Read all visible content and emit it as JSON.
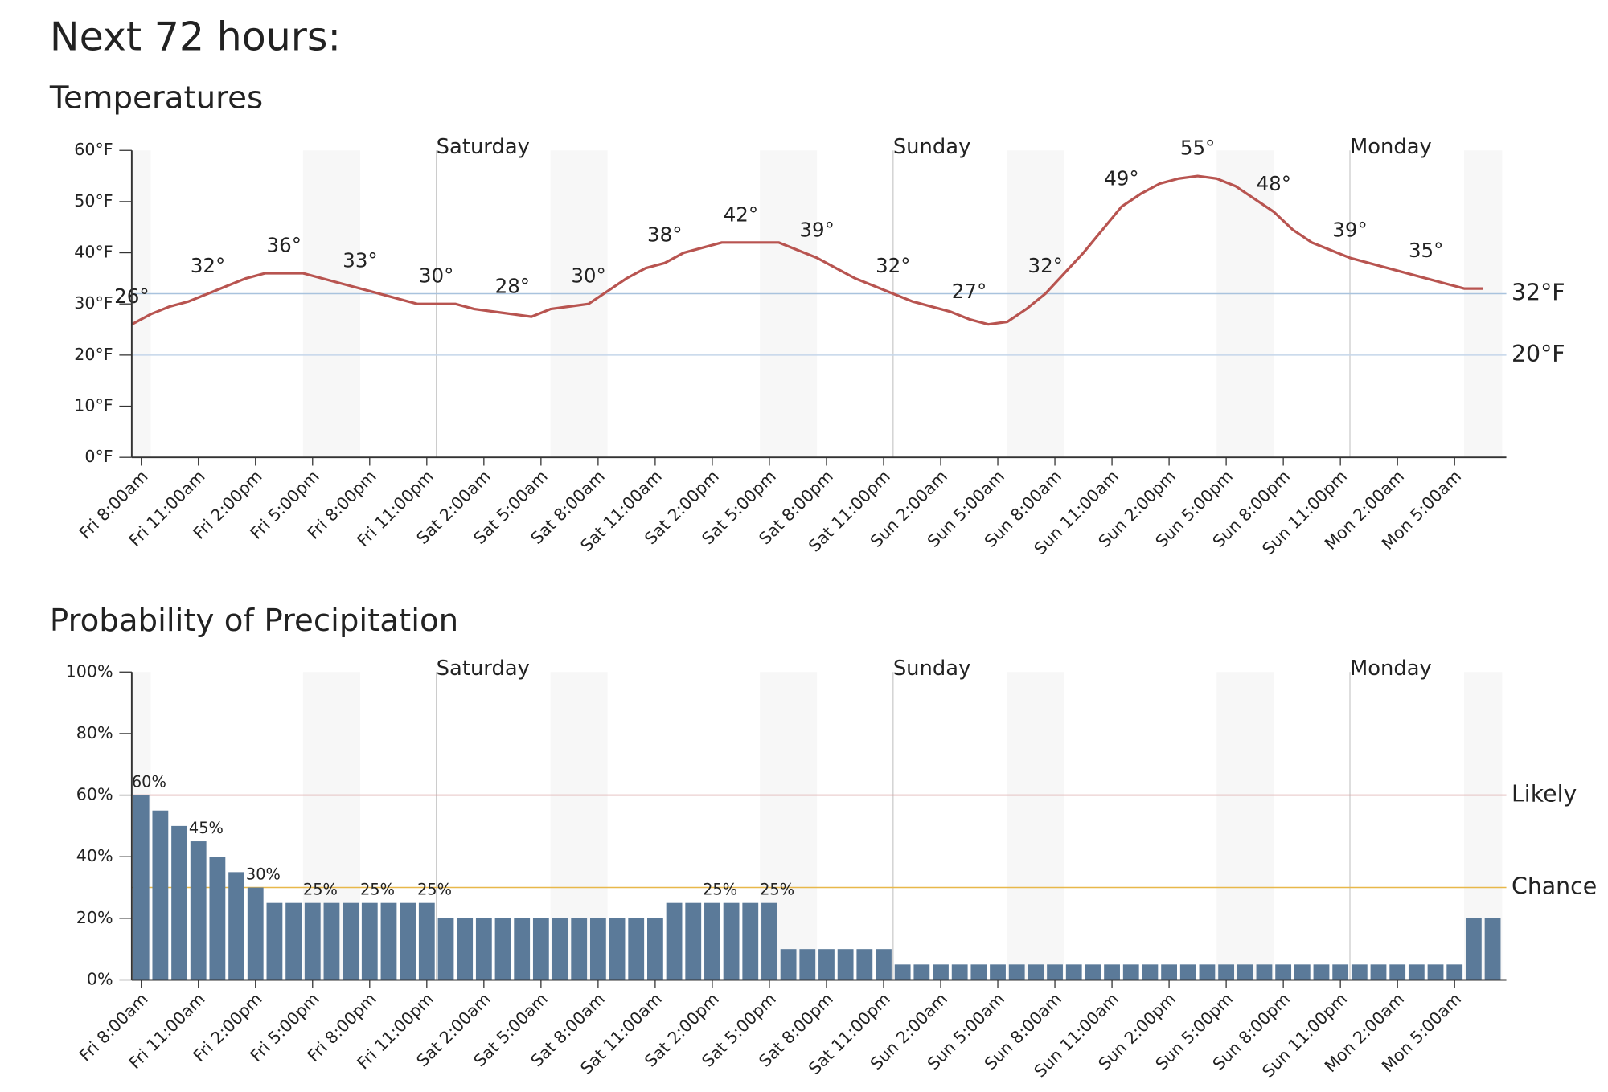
{
  "header": {
    "title": "Next 72 hours:"
  },
  "chart_data": [
    {
      "type": "line",
      "title": "Temperatures",
      "categories": [
        "Fri 8:00am",
        null,
        null,
        "Fri 11:00am",
        null,
        null,
        "Fri 2:00pm",
        null,
        null,
        "Fri 5:00pm",
        null,
        null,
        "Fri 8:00pm",
        null,
        null,
        "Fri 11:00pm",
        null,
        null,
        "Sat 2:00am",
        null,
        null,
        "Sat 5:00am",
        null,
        null,
        "Sat 8:00am",
        null,
        null,
        "Sat 11:00am",
        null,
        null,
        "Sat 2:00pm",
        null,
        null,
        "Sat 5:00pm",
        null,
        null,
        "Sat 8:00pm",
        null,
        null,
        "Sat 11:00pm",
        null,
        null,
        "Sun 2:00am",
        null,
        null,
        "Sun 5:00am",
        null,
        null,
        "Sun 8:00am",
        null,
        null,
        "Sun 11:00am",
        null,
        null,
        "Sun 2:00pm",
        null,
        null,
        "Sun 5:00pm",
        null,
        null,
        "Sun 8:00pm",
        null,
        null,
        "Sun 11:00pm",
        null,
        null,
        "Mon 2:00am",
        null,
        null,
        "Mon 5:00am",
        null,
        null
      ],
      "values": [
        26,
        28,
        29.5,
        30.5,
        32,
        33.5,
        35,
        36,
        36,
        36,
        35,
        34,
        33,
        32,
        31,
        30,
        30,
        30,
        29,
        28.5,
        28,
        27.5,
        29,
        29.5,
        30,
        32.5,
        35,
        37,
        38,
        40,
        41,
        42,
        42,
        42,
        42,
        40.5,
        39,
        37,
        35,
        33.5,
        32,
        30.5,
        29.5,
        28.5,
        27,
        26,
        26.5,
        29,
        32,
        36,
        40,
        44.5,
        49,
        51.5,
        53.5,
        54.5,
        55,
        54.5,
        53,
        50.5,
        48,
        44.5,
        42,
        40.5,
        39,
        38,
        37,
        36,
        35,
        34,
        33,
        33
      ],
      "value_labels": [
        "26°",
        null,
        null,
        null,
        "32°",
        null,
        null,
        null,
        "36°",
        null,
        null,
        null,
        "33°",
        null,
        null,
        null,
        "30°",
        null,
        null,
        null,
        "28°",
        null,
        null,
        null,
        "30°",
        null,
        null,
        null,
        "38°",
        null,
        null,
        null,
        "42°",
        null,
        null,
        null,
        "39°",
        null,
        null,
        null,
        "32°",
        null,
        null,
        null,
        "27°",
        null,
        null,
        null,
        "32°",
        null,
        null,
        null,
        "49°",
        null,
        null,
        null,
        "55°",
        null,
        null,
        null,
        "48°",
        null,
        null,
        null,
        "39°",
        null,
        null,
        null,
        "35°",
        null,
        null,
        null
      ],
      "color": "#b85450",
      "ylim": [
        0,
        60
      ],
      "yticks": [
        {
          "value": 0,
          "label": "0°F"
        },
        {
          "value": 10,
          "label": "10°F"
        },
        {
          "value": 20,
          "label": "20°F"
        },
        {
          "value": 30,
          "label": "30°F"
        },
        {
          "value": 40,
          "label": "40°F"
        },
        {
          "value": 50,
          "label": "50°F"
        },
        {
          "value": 60,
          "label": "60°F"
        }
      ],
      "reference_lines": [
        {
          "value": 32,
          "label": "32°F",
          "color": "#a9c3de"
        },
        {
          "value": 20,
          "label": "20°F",
          "color": "#c5d6ea"
        }
      ],
      "day_labels": [
        "Saturday",
        "Sunday",
        "Monday"
      ]
    },
    {
      "type": "bar",
      "title": "Probability of Precipitation",
      "categories": [
        "Fri 8:00am",
        null,
        null,
        "Fri 11:00am",
        null,
        null,
        "Fri 2:00pm",
        null,
        null,
        "Fri 5:00pm",
        null,
        null,
        "Fri 8:00pm",
        null,
        null,
        "Fri 11:00pm",
        null,
        null,
        "Sat 2:00am",
        null,
        null,
        "Sat 5:00am",
        null,
        null,
        "Sat 8:00am",
        null,
        null,
        "Sat 11:00am",
        null,
        null,
        "Sat 2:00pm",
        null,
        null,
        "Sat 5:00pm",
        null,
        null,
        "Sat 8:00pm",
        null,
        null,
        "Sat 11:00pm",
        null,
        null,
        "Sun 2:00am",
        null,
        null,
        "Sun 5:00am",
        null,
        null,
        "Sun 8:00am",
        null,
        null,
        "Sun 11:00am",
        null,
        null,
        "Sun 2:00pm",
        null,
        null,
        "Sun 5:00pm",
        null,
        null,
        "Sun 8:00pm",
        null,
        null,
        "Sun 11:00pm",
        null,
        null,
        "Mon 2:00am",
        null,
        null,
        "Mon 5:00am",
        null,
        null
      ],
      "values": [
        60,
        55,
        50,
        45,
        40,
        35,
        30,
        25,
        25,
        25,
        25,
        25,
        25,
        25,
        25,
        25,
        20,
        20,
        20,
        20,
        20,
        20,
        20,
        20,
        20,
        20,
        20,
        20,
        25,
        25,
        25,
        25,
        25,
        25,
        10,
        10,
        10,
        10,
        10,
        10,
        5,
        5,
        5,
        5,
        5,
        5,
        5,
        5,
        5,
        5,
        5,
        5,
        5,
        5,
        5,
        5,
        5,
        5,
        5,
        5,
        5,
        5,
        5,
        5,
        5,
        5,
        5,
        5,
        5,
        5,
        20,
        20
      ],
      "value_labels": [
        "60%",
        null,
        null,
        "45%",
        null,
        null,
        "30%",
        null,
        null,
        "25%",
        null,
        null,
        "25%",
        null,
        null,
        "25%",
        null,
        null,
        null,
        null,
        null,
        null,
        null,
        null,
        null,
        null,
        null,
        null,
        null,
        null,
        "25%",
        null,
        null,
        "25%",
        null,
        null,
        null,
        null,
        null,
        null,
        null,
        null,
        null,
        null,
        null,
        null,
        null,
        null,
        null,
        null,
        null,
        null,
        null,
        null,
        null,
        null,
        null,
        null,
        null,
        null,
        null,
        null,
        null,
        null,
        null,
        null,
        null,
        null,
        null,
        null,
        null,
        null
      ],
      "color": "#5b7a99",
      "ylim": [
        0,
        100
      ],
      "yticks": [
        {
          "value": 0,
          "label": "0%"
        },
        {
          "value": 20,
          "label": "20%"
        },
        {
          "value": 40,
          "label": "40%"
        },
        {
          "value": 60,
          "label": "60%"
        },
        {
          "value": 80,
          "label": "80%"
        },
        {
          "value": 100,
          "label": "100%"
        }
      ],
      "reference_lines": [
        {
          "value": 60,
          "label": "Likely",
          "color": "#d9a3a3"
        },
        {
          "value": 30,
          "label": "Chance",
          "color": "#e8b84a"
        }
      ],
      "day_labels": [
        "Saturday",
        "Sunday",
        "Monday"
      ]
    }
  ]
}
